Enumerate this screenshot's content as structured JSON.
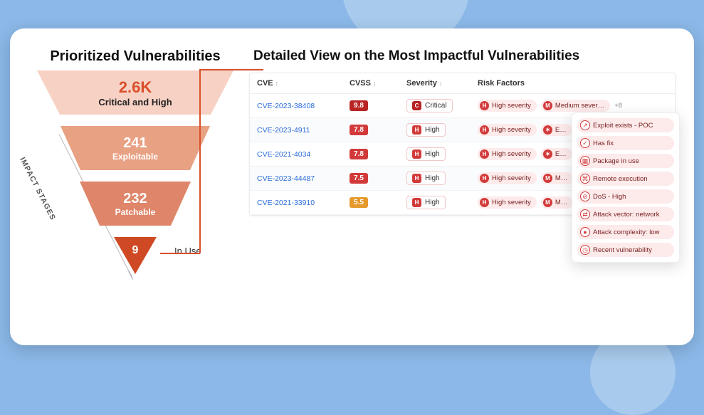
{
  "left": {
    "title": "Prioritized Vulnerabilities",
    "impact_label": "IMPACT STAGES",
    "stages": [
      {
        "value": "2.6K",
        "label": "Critical and High",
        "fill": "#f7d2c4",
        "text_color": "#d94f2a",
        "sub_color": "#222"
      },
      {
        "value": "241",
        "label": "Exploitable",
        "fill": "#e9a184",
        "text_color": "#ffffff"
      },
      {
        "value": "232",
        "label": "Patchable",
        "fill": "#df8569",
        "text_color": "#ffffff"
      },
      {
        "value": "9",
        "label": "In Use",
        "fill": "#cf4a24",
        "text_color": "#ffffff"
      }
    ],
    "connector_color": "#d94f2a",
    "arrow_color": "#b9b9b9"
  },
  "right": {
    "title": "Detailed View on the Most Impactful Vulnerabilities",
    "columns": [
      "CVE",
      "CVSS",
      "Severity",
      "Risk Factors"
    ],
    "rows": [
      {
        "cve": "CVE-2023-38408",
        "cvss": "9.8",
        "cvss_bg": "#b82525",
        "sev_code": "C",
        "sev_label": "Critical",
        "sev_bg": "#b82525",
        "rf": [
          {
            "code": "H",
            "bg": "#d23a3a",
            "label": "High severity"
          },
          {
            "code": "M",
            "bg": "#d23a3a",
            "label": "Medium sever…"
          }
        ],
        "more": "+8"
      },
      {
        "cve": "CVE-2023-4911",
        "cvss": "7.8",
        "cvss_bg": "#d23a3a",
        "sev_code": "H",
        "sev_label": "High",
        "sev_bg": "#d23a3a",
        "rf": [
          {
            "code": "H",
            "bg": "#d23a3a",
            "label": "High severity"
          },
          {
            "code": "",
            "bg": "#d23a3a",
            "label": "E…",
            "icon": "bug"
          }
        ],
        "more": ""
      },
      {
        "cve": "CVE-2021-4034",
        "cvss": "7.8",
        "cvss_bg": "#d23a3a",
        "sev_code": "H",
        "sev_label": "High",
        "sev_bg": "#d23a3a",
        "rf": [
          {
            "code": "H",
            "bg": "#d23a3a",
            "label": "High severity"
          },
          {
            "code": "",
            "bg": "#d23a3a",
            "label": "E…",
            "icon": "bug"
          }
        ],
        "more": ""
      },
      {
        "cve": "CVE-2023-44487",
        "cvss": "7.5",
        "cvss_bg": "#d23a3a",
        "sev_code": "H",
        "sev_label": "High",
        "sev_bg": "#d23a3a",
        "rf": [
          {
            "code": "H",
            "bg": "#d23a3a",
            "label": "High severity"
          },
          {
            "code": "M",
            "bg": "#d23a3a",
            "label": "M…"
          }
        ],
        "more": ""
      },
      {
        "cve": "CVE-2021-33910",
        "cvss": "5.5",
        "cvss_bg": "#e79a2c",
        "sev_code": "H",
        "sev_label": "High",
        "sev_bg": "#d23a3a",
        "rf": [
          {
            "code": "H",
            "bg": "#d23a3a",
            "label": "High severity"
          },
          {
            "code": "M",
            "bg": "#d23a3a",
            "label": "M…"
          }
        ],
        "more": ""
      }
    ],
    "popover": [
      {
        "icon": "↗",
        "bg": "#d23a3a",
        "label": "Exploit exists - POC"
      },
      {
        "icon": "✓",
        "bg": "#d23a3a",
        "label": "Has fix"
      },
      {
        "icon": "▦",
        "bg": "#d23a3a",
        "label": "Package in use"
      },
      {
        "icon": "⌘",
        "bg": "#d23a3a",
        "label": "Remote execution"
      },
      {
        "icon": "⊘",
        "bg": "#d23a3a",
        "label": "DoS - High"
      },
      {
        "icon": "⇄",
        "bg": "#d23a3a",
        "label": "Attack vector: network"
      },
      {
        "icon": "●",
        "bg": "#d23a3a",
        "label": "Attack complexity: low"
      },
      {
        "icon": "◷",
        "bg": "#d23a3a",
        "label": "Recent vulnerability"
      }
    ]
  }
}
